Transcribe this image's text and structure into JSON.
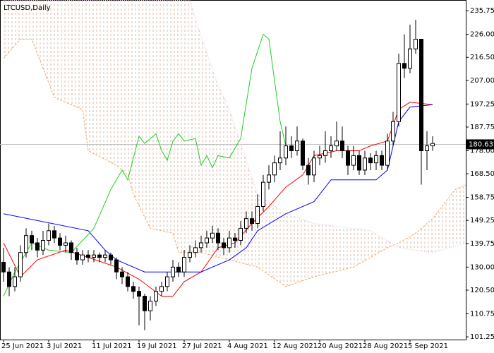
{
  "chart_data": {
    "type": "candlestick",
    "title": "LTCUSD,Daily",
    "categories": [
      "25 Jun 2021",
      null,
      null,
      null,
      null,
      null,
      null,
      null,
      "3 Jul 2021",
      null,
      null,
      null,
      null,
      null,
      null,
      null,
      "11 Jul 2021",
      null,
      null,
      null,
      null,
      null,
      null,
      null,
      "19 Jul 2021",
      null,
      null,
      null,
      null,
      null,
      null,
      null,
      "27 Jul 2021",
      null,
      null,
      null,
      null,
      null,
      null,
      null,
      "4 Aug 2021",
      null,
      null,
      null,
      null,
      null,
      null,
      null,
      "12 Aug 2021",
      null,
      null,
      null,
      null,
      null,
      null,
      null,
      "20 Aug 2021",
      null,
      null,
      null,
      null,
      null,
      null,
      null,
      "28 Aug 2021",
      null,
      null,
      null,
      null,
      null,
      null,
      null,
      "5 Sep 2021",
      null,
      null,
      null,
      null,
      null,
      null,
      null,
      null,
      null,
      null
    ],
    "open": [
      132,
      128,
      122,
      126,
      136,
      143,
      140,
      137,
      141,
      145,
      142,
      139,
      140,
      136,
      133,
      135,
      134,
      135,
      134,
      135,
      133,
      128,
      126,
      122,
      120,
      118,
      112,
      116,
      120,
      122,
      126,
      130,
      128,
      134,
      136,
      138,
      140,
      142,
      144,
      140,
      138,
      142,
      141,
      146,
      150,
      148,
      155,
      165,
      168,
      173,
      175,
      180,
      178,
      182,
      172,
      168,
      175,
      176,
      178,
      180,
      182,
      178,
      172,
      176,
      170,
      175,
      173,
      176,
      172,
      182,
      190,
      214,
      212,
      220,
      224,
      178,
      180,
      null,
      null,
      null,
      null,
      null,
      null
    ],
    "high": [
      138,
      130,
      130,
      139,
      146,
      145,
      142,
      145,
      148,
      147,
      144,
      143,
      141,
      138,
      137,
      137,
      137,
      136,
      137,
      136,
      134,
      130,
      128,
      124,
      122,
      119,
      118,
      122,
      124,
      128,
      133,
      132,
      137,
      139,
      141,
      143,
      145,
      147,
      146,
      142,
      145,
      144,
      149,
      153,
      153,
      160,
      168,
      172,
      176,
      186,
      188,
      184,
      188,
      183,
      175,
      178,
      180,
      186,
      184,
      190,
      188,
      180,
      180,
      178,
      178,
      177,
      178,
      178,
      185,
      194,
      218,
      226,
      230,
      232,
      224,
      186,
      184,
      null,
      null,
      null,
      null,
      null,
      null
    ],
    "low": [
      124,
      118,
      120,
      124,
      134,
      137,
      134,
      135,
      139,
      140,
      137,
      136,
      133,
      131,
      131,
      132,
      132,
      132,
      132,
      131,
      125,
      123,
      120,
      117,
      106,
      104,
      108,
      114,
      118,
      120,
      124,
      126,
      126,
      132,
      134,
      136,
      138,
      140,
      137,
      135,
      136,
      138,
      139,
      144,
      145,
      146,
      153,
      162,
      165,
      170,
      172,
      175,
      176,
      170,
      164,
      165,
      172,
      173,
      175,
      178,
      175,
      168,
      170,
      168,
      168,
      170,
      170,
      170,
      170,
      180,
      188,
      208,
      210,
      218,
      164,
      170,
      178,
      null,
      null,
      null,
      null,
      null,
      null
    ],
    "close": [
      128,
      122,
      126,
      136,
      143,
      140,
      137,
      141,
      145,
      142,
      139,
      140,
      136,
      133,
      135,
      134,
      135,
      134,
      135,
      133,
      128,
      126,
      122,
      120,
      118,
      112,
      116,
      120,
      122,
      126,
      130,
      128,
      134,
      136,
      138,
      140,
      142,
      144,
      140,
      138,
      142,
      141,
      146,
      150,
      148,
      155,
      165,
      168,
      173,
      175,
      180,
      178,
      182,
      172,
      168,
      175,
      176,
      178,
      180,
      182,
      178,
      172,
      176,
      170,
      175,
      173,
      176,
      172,
      182,
      190,
      214,
      212,
      220,
      224,
      178,
      180,
      181,
      null,
      null,
      null,
      null,
      null,
      null
    ],
    "lines": [
      {
        "color": "#f4a460",
        "style": "dashed",
        "x": [
          0,
          3,
          5,
          9,
          14,
          15,
          20,
          22,
          23,
          26,
          30,
          31,
          35,
          45,
          50,
          55,
          62,
          68,
          70,
          73,
          76,
          80,
          82
        ],
        "values": [
          216,
          224,
          224,
          200,
          195,
          178,
          172,
          168,
          160,
          146,
          144,
          136,
          136,
          130,
          122,
          126,
          130,
          138,
          140,
          144,
          150,
          162,
          164
        ]
      },
      {
        "color": "#d8bfd8",
        "style": "dotted",
        "x": [
          0,
          33,
          35,
          38,
          40,
          45,
          50,
          55,
          65,
          70,
          76,
          82
        ],
        "values": [
          240,
          240,
          225,
          205,
          195,
          160,
          152,
          148,
          145,
          138,
          136,
          140
        ]
      },
      {
        "color": "#ff0000",
        "style": "solid",
        "x": [
          0,
          3,
          6,
          11,
          15,
          20,
          24,
          28,
          30,
          32,
          35,
          38,
          41,
          44,
          47,
          50,
          53,
          55,
          59,
          63,
          65,
          68,
          70,
          72,
          76
        ],
        "values": [
          140,
          126,
          133,
          137,
          134,
          130,
          125,
          118,
          118,
          124,
          128,
          138,
          140,
          148,
          155,
          163,
          168,
          176,
          178,
          178,
          180,
          182,
          195,
          198,
          197
        ]
      },
      {
        "color": "#0000ff",
        "style": "solid",
        "x": [
          0,
          15,
          18,
          20,
          25,
          35,
          40,
          43,
          45,
          50,
          55,
          58,
          66,
          68,
          70,
          72,
          76
        ],
        "values": [
          152,
          145,
          137,
          133,
          128,
          128,
          133,
          138,
          145,
          152,
          157,
          166,
          166,
          170,
          190,
          196,
          197
        ]
      },
      {
        "color": "#22cc22",
        "style": "solid",
        "x": [
          0,
          2,
          5,
          8,
          12,
          16,
          19,
          21,
          22,
          24,
          25,
          27,
          28,
          29,
          30,
          31,
          32,
          34,
          35,
          36,
          37,
          38,
          40,
          42,
          44,
          46,
          47,
          49,
          50
        ],
        "values": [
          118,
          128,
          140,
          137,
          136,
          146,
          162,
          170,
          166,
          184,
          181,
          185,
          178,
          174,
          182,
          185,
          182,
          183,
          172,
          176,
          171,
          176,
          175,
          183,
          212,
          226,
          224,
          190,
          180
        ]
      }
    ],
    "cloud": true,
    "last_price": 180.63,
    "ylim": [
      100.4,
      238.7
    ],
    "yticks": [
      235.75,
      {
        "value": 226,
        "label": "226.00"
      },
      {
        "value": 216.5,
        "label": "216.50"
      },
      {
        "value": 207,
        "label": "207.00"
      },
      197.25,
      187.75,
      {
        "value": 178,
        "label": "178.00"
      },
      {
        "value": 168.5,
        "label": "168.50"
      },
      158.75,
      149.25,
      139.75,
      {
        "value": 130,
        "label": "130.00"
      },
      {
        "value": 120.5,
        "label": "120.50"
      },
      110.75,
      101.25
    ]
  }
}
